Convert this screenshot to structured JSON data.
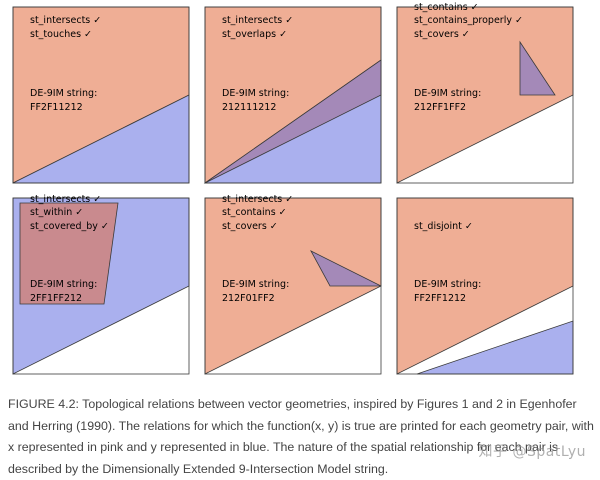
{
  "colors": {
    "x_fill": "#EFAE95",
    "y_fill": "#AAB0EE",
    "overlap_fill": "#A489B8",
    "within_fill": "#C98A8E",
    "border": "#3a3a3a"
  },
  "panels": [
    {
      "relations": [
        "st_intersects ✓",
        "st_touches ✓"
      ],
      "de9im_label": "DE-9IM string:",
      "de9im": "FF2F11212"
    },
    {
      "relations": [
        "st_intersects ✓",
        "st_overlaps ✓"
      ],
      "de9im_label": "DE-9IM string:",
      "de9im": "212111212"
    },
    {
      "relations": [
        "st_contains ✓",
        "st_contains_properly ✓",
        "st_covers ✓"
      ],
      "de9im_label": "DE-9IM string:",
      "de9im": "212FF1FF2"
    },
    {
      "relations": [
        "st_intersects ✓",
        "st_within ✓",
        "st_covered_by ✓"
      ],
      "de9im_label": "DE-9IM string:",
      "de9im": "2FF1FF212"
    },
    {
      "relations": [
        "st_intersects ✓",
        "st_contains ✓",
        "st_covers ✓"
      ],
      "de9im_label": "DE-9IM string:",
      "de9im": "212F01FF2"
    },
    {
      "relations": [
        "st_disjoint ✓"
      ],
      "de9im_label": "DE-9IM string:",
      "de9im": "FF2FF1212"
    }
  ],
  "caption": "FIGURE 4.2: Topological relations between vector geometries, inspired by Figures 1 and 2 in Egenhofer and Herring (1990). The relations for which the function(x, y) is true are printed for each geometry pair, with x represented in pink and y represented in blue. The nature of the spatial relationship for each pair is described by the Dimensionally Extended 9-Intersection Model string.",
  "watermark": "知乎 @SpatLyu"
}
